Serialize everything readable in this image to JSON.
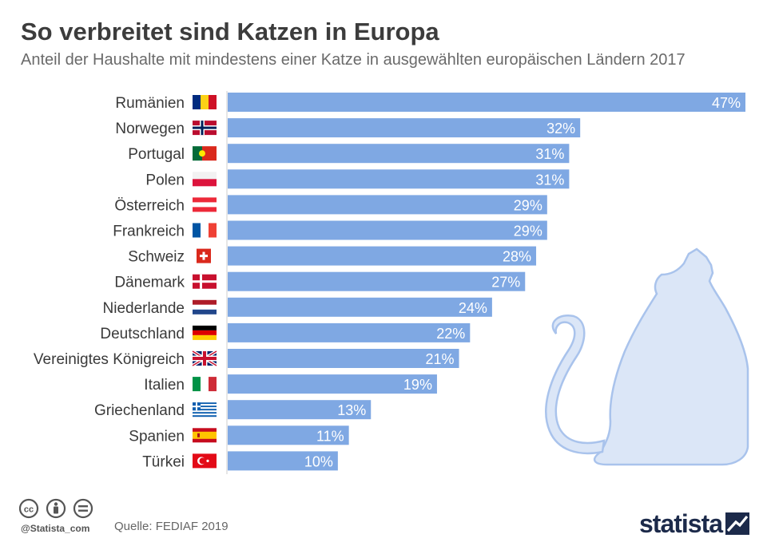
{
  "title": "So verbreitet sind Katzen in Europa",
  "subtitle": "Anteil der Haushalte mit mindestens einer Katze in ausgewählten europäischen Ländern 2017",
  "footer": {
    "handle": "@Statista_com",
    "source": "Quelle: FEDIAF 2019",
    "brand": "statista",
    "license_icons": [
      "cc-icon",
      "attribution-icon",
      "no-derivatives-icon"
    ]
  },
  "colors": {
    "bar": "#7fa8e3",
    "cat_fill": "#dbe6f7",
    "cat_stroke": "#a9c3ec",
    "axis": "#cccccc"
  },
  "chart_data": {
    "type": "bar",
    "orientation": "horizontal",
    "categories": [
      "Rumänien",
      "Norwegen",
      "Portugal",
      "Polen",
      "Österreich",
      "Frankreich",
      "Schweiz",
      "Dänemark",
      "Niederlande",
      "Deutschland",
      "Vereinigtes Königreich",
      "Italien",
      "Griechenland",
      "Spanien",
      "Türkei"
    ],
    "values": [
      47,
      32,
      31,
      31,
      29,
      29,
      28,
      27,
      24,
      22,
      21,
      19,
      13,
      11,
      10
    ],
    "value_labels": [
      "47%",
      "32%",
      "31%",
      "31%",
      "29%",
      "29%",
      "28%",
      "27%",
      "24%",
      "22%",
      "21%",
      "19%",
      "13%",
      "11%",
      "10%"
    ],
    "flags": [
      "romania-flag-icon",
      "norway-flag-icon",
      "portugal-flag-icon",
      "poland-flag-icon",
      "austria-flag-icon",
      "france-flag-icon",
      "switzerland-flag-icon",
      "denmark-flag-icon",
      "netherlands-flag-icon",
      "germany-flag-icon",
      "uk-flag-icon",
      "italy-flag-icon",
      "greece-flag-icon",
      "spain-flag-icon",
      "turkey-flag-icon"
    ],
    "xlim": [
      0,
      47
    ],
    "unit": "%",
    "grid": false,
    "legend": "none"
  }
}
